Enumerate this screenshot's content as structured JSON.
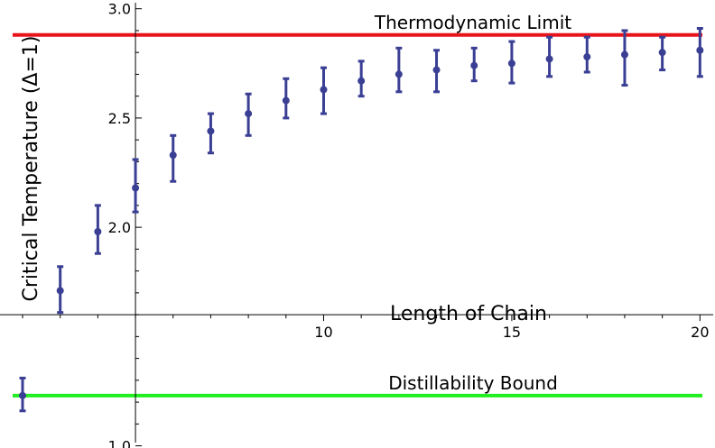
{
  "chart_data": {
    "type": "scatter",
    "title": "",
    "xlabel": "Length of Chain",
    "ylabel": "Critical Temperature (Δ=1)",
    "x_axis": {
      "ticks": [
        10,
        15,
        20
      ],
      "tick_labels": [
        "10",
        "15",
        "20"
      ],
      "crosses_y_at": 1.6
    },
    "y_axis": {
      "ticks": [
        1.0,
        2.0,
        2.5,
        3.0
      ],
      "tick_labels": [
        "1.0",
        "2.0",
        "2.5",
        "3.0"
      ],
      "crosses_x_at": 5
    },
    "xlim": [
      1.4,
      20.4
    ],
    "ylim": [
      0.99,
      3.04
    ],
    "grid": false,
    "legend": "none",
    "colors": {
      "points": "#3a3f94",
      "thermodynamic_limit": "#e8141b",
      "distillability_bound": "#22ee22"
    },
    "series": [
      {
        "x": [
          2,
          3,
          4,
          5,
          6,
          7,
          8,
          9,
          10,
          11,
          12,
          13,
          14,
          15,
          16,
          17,
          18,
          19,
          20
        ],
        "y": [
          1.23,
          1.71,
          1.98,
          2.18,
          2.33,
          2.44,
          2.52,
          2.58,
          2.63,
          2.67,
          2.7,
          2.72,
          2.74,
          2.75,
          2.77,
          2.78,
          2.79,
          2.8,
          2.81
        ],
        "err_low": [
          0.07,
          0.1,
          0.1,
          0.11,
          0.12,
          0.1,
          0.1,
          0.08,
          0.11,
          0.07,
          0.08,
          0.1,
          0.07,
          0.09,
          0.08,
          0.07,
          0.14,
          0.08,
          0.12
        ],
        "err_high": [
          0.08,
          0.11,
          0.12,
          0.13,
          0.09,
          0.08,
          0.09,
          0.1,
          0.1,
          0.09,
          0.12,
          0.09,
          0.08,
          0.1,
          0.1,
          0.09,
          0.11,
          0.07,
          0.1
        ]
      }
    ],
    "reference_lines": [
      {
        "label": "Thermodynamic Limit",
        "y": 2.88,
        "color": "#e8141b"
      },
      {
        "label": "Distillability Bound",
        "y": 1.23,
        "color": "#22ee22"
      }
    ]
  }
}
